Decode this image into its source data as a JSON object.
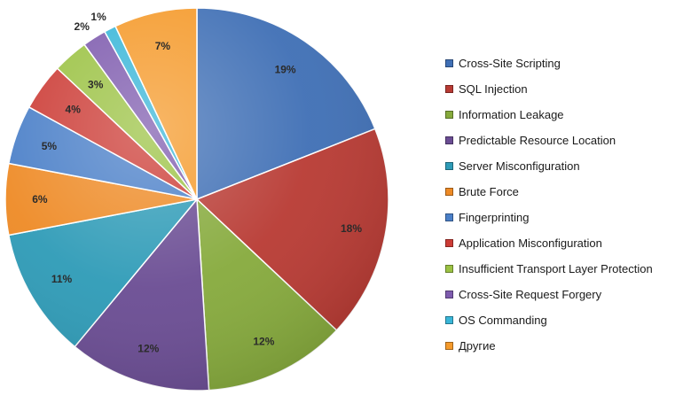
{
  "chart_data": {
    "type": "pie",
    "title": "",
    "legend_position": "right",
    "slices": [
      {
        "label": "Cross-Site Scripting",
        "value": 19,
        "display": "19%",
        "color": "#3F6FB5"
      },
      {
        "label": "SQL Injection",
        "value": 18,
        "display": "18%",
        "color": "#B83A33"
      },
      {
        "label": "Information  Leakage",
        "value": 12,
        "display": "12%",
        "color": "#86AA3C"
      },
      {
        "label": "Predictable Resource Location",
        "value": 12,
        "display": "12%",
        "color": "#6A4C93"
      },
      {
        "label": "Server Misconfiguration",
        "value": 11,
        "display": "11%",
        "color": "#2E9BB7"
      },
      {
        "label": "Brute Force",
        "value": 6,
        "display": "6%",
        "color": "#EE8A25"
      },
      {
        "label": "Fingerprinting",
        "value": 5,
        "display": "5%",
        "color": "#4A7FC8"
      },
      {
        "label": "Application Misconfiguration",
        "value": 4,
        "display": "4%",
        "color": "#CC3C36"
      },
      {
        "label": "Insufficient Transport Layer Protection",
        "value": 3,
        "display": "3%",
        "color": "#9BC243"
      },
      {
        "label": "Cross-Site Request Forgery",
        "value": 2,
        "display": "2%",
        "color": "#7E5BAE"
      },
      {
        "label": "OS Commanding",
        "value": 1,
        "display": "1%",
        "color": "#39B6D8"
      },
      {
        "label": "Другие",
        "value": 7,
        "display": "7%",
        "color": "#F59A2B"
      }
    ]
  }
}
